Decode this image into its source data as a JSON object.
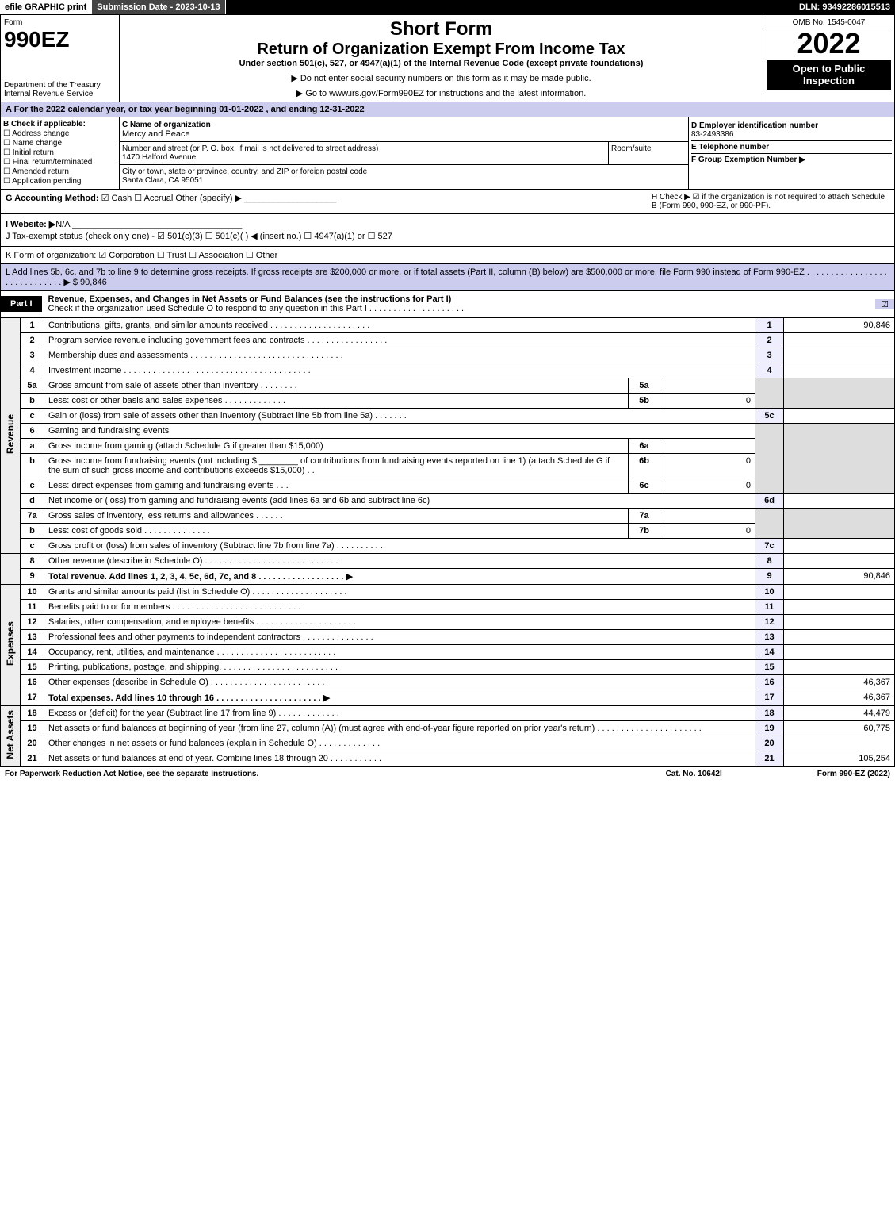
{
  "topbar": {
    "efile": "efile GRAPHIC print",
    "subdate": "Submission Date - 2023-10-13",
    "dln": "DLN: 93492286015513"
  },
  "header": {
    "form_label": "Form",
    "form_code": "990EZ",
    "dept": "Department of the Treasury\nInternal Revenue Service",
    "short_form": "Short Form",
    "title": "Return of Organization Exempt From Income Tax",
    "subtitle": "Under section 501(c), 527, or 4947(a)(1) of the Internal Revenue Code (except private foundations)",
    "note1": "▶ Do not enter social security numbers on this form as it may be made public.",
    "note2": "▶ Go to www.irs.gov/Form990EZ for instructions and the latest information.",
    "omb": "OMB No. 1545-0047",
    "year": "2022",
    "open": "Open to Public Inspection"
  },
  "sec_a": "A  For the 2022 calendar year, or tax year beginning 01-01-2022 , and ending 12-31-2022",
  "sec_b": {
    "label": "B  Check if applicable:",
    "items": [
      "Address change",
      "Name change",
      "Initial return",
      "Final return/terminated",
      "Amended return",
      "Application pending"
    ]
  },
  "sec_c": {
    "label": "C Name of organization",
    "name": "Mercy and Peace",
    "addr_label": "Number and street (or P. O. box, if mail is not delivered to street address)",
    "addr": "1470 Halford Avenue",
    "room_label": "Room/suite",
    "city_label": "City or town, state or province, country, and ZIP or foreign postal code",
    "city": "Santa Clara, CA  95051"
  },
  "sec_d": {
    "label": "D Employer identification number",
    "ein": "83-2493386",
    "e_label": "E Telephone number",
    "f_label": "F Group Exemption Number  ▶"
  },
  "sec_g": {
    "label": "G Accounting Method:",
    "cash": "Cash",
    "accrual": "Accrual",
    "other": "Other (specify) ▶"
  },
  "sec_h": "H  Check ▶ ☑ if the organization is not required to attach Schedule B (Form 990, 990-EZ, or 990-PF).",
  "sec_i": {
    "label": "I Website: ▶",
    "val": "N/A"
  },
  "sec_j": "J Tax-exempt status (check only one) - ☑ 501(c)(3) ☐ 501(c)(  ) ◀ (insert no.) ☐ 4947(a)(1) or ☐ 527",
  "sec_k": "K Form of organization:  ☑ Corporation  ☐ Trust  ☐ Association  ☐ Other",
  "sec_l": {
    "text": "L Add lines 5b, 6c, and 7b to line 9 to determine gross receipts. If gross receipts are $200,000 or more, or if total assets (Part II, column (B) below) are $500,000 or more, file Form 990 instead of Form 990-EZ . . . . . . . . . . . . . . . . . . . . . . . . . . . . . ▶ $",
    "amt": "90,846"
  },
  "part1": {
    "label": "Part I",
    "title": "Revenue, Expenses, and Changes in Net Assets or Fund Balances (see the instructions for Part I)",
    "sub": "Check if the organization used Schedule O to respond to any question in this Part I . . . . . . . . . . . . . . . . . . . .",
    "checked": "☑"
  },
  "revenue_label": "Revenue",
  "expenses_label": "Expenses",
  "netassets_label": "Net Assets",
  "lines": {
    "l1": {
      "n": "1",
      "t": "Contributions, gifts, grants, and similar amounts received . . . . . . . . . . . . . . . . . . . . .",
      "ref": "1",
      "amt": "90,846"
    },
    "l2": {
      "n": "2",
      "t": "Program service revenue including government fees and contracts . . . . . . . . . . . . . . . . .",
      "ref": "2",
      "amt": ""
    },
    "l3": {
      "n": "3",
      "t": "Membership dues and assessments . . . . . . . . . . . . . . . . . . . . . . . . . . . . . . . .",
      "ref": "3",
      "amt": ""
    },
    "l4": {
      "n": "4",
      "t": "Investment income . . . . . . . . . . . . . . . . . . . . . . . . . . . . . . . . . . . . . . .",
      "ref": "4",
      "amt": ""
    },
    "l5a": {
      "n": "5a",
      "t": "Gross amount from sale of assets other than inventory . . . . . . . .",
      "sref": "5a",
      "samt": ""
    },
    "l5b": {
      "n": "b",
      "t": "Less: cost or other basis and sales expenses . . . . . . . . . . . . .",
      "sref": "5b",
      "samt": "0"
    },
    "l5c": {
      "n": "c",
      "t": "Gain or (loss) from sale of assets other than inventory (Subtract line 5b from line 5a) . . . . . . .",
      "ref": "5c",
      "amt": ""
    },
    "l6": {
      "n": "6",
      "t": "Gaming and fundraising events"
    },
    "l6a": {
      "n": "a",
      "t": "Gross income from gaming (attach Schedule G if greater than $15,000)",
      "sref": "6a",
      "samt": ""
    },
    "l6b": {
      "n": "b",
      "t1": "Gross income from fundraising events (not including $",
      "t2": "of contributions from fundraising events reported on line 1) (attach Schedule G if the sum of such gross income and contributions exceeds $15,000)   .  .",
      "sref": "6b",
      "samt": "0"
    },
    "l6c": {
      "n": "c",
      "t": "Less: direct expenses from gaming and fundraising events  . . .",
      "sref": "6c",
      "samt": "0"
    },
    "l6d": {
      "n": "d",
      "t": "Net income or (loss) from gaming and fundraising events (add lines 6a and 6b and subtract line 6c)",
      "ref": "6d",
      "amt": ""
    },
    "l7a": {
      "n": "7a",
      "t": "Gross sales of inventory, less returns and allowances . . . . . .",
      "sref": "7a",
      "samt": ""
    },
    "l7b": {
      "n": "b",
      "t": "Less: cost of goods sold     .  .  .  .  .  .  .  .  .  .  .  .  .  .",
      "sref": "7b",
      "samt": "0"
    },
    "l7c": {
      "n": "c",
      "t": "Gross profit or (loss) from sales of inventory (Subtract line 7b from line 7a) . . . . . . . . . .",
      "ref": "7c",
      "amt": ""
    },
    "l8": {
      "n": "8",
      "t": "Other revenue (describe in Schedule O) . . . . . . . . . . . . . . . . . . . . . . . . . . . . .",
      "ref": "8",
      "amt": ""
    },
    "l9": {
      "n": "9",
      "t": "Total revenue. Add lines 1, 2, 3, 4, 5c, 6d, 7c, and 8  . . . . . . . . . . . . . . . . . .    ▶",
      "ref": "9",
      "amt": "90,846"
    },
    "l10": {
      "n": "10",
      "t": "Grants and similar amounts paid (list in Schedule O) . . . . . . . . . . . . . . . . . . . .",
      "ref": "10",
      "amt": ""
    },
    "l11": {
      "n": "11",
      "t": "Benefits paid to or for members    . . . . . . . . . . . . . . . . . . . . . . . . . . .",
      "ref": "11",
      "amt": ""
    },
    "l12": {
      "n": "12",
      "t": "Salaries, other compensation, and employee benefits . . . . . . . . . . . . . . . . . . . . .",
      "ref": "12",
      "amt": ""
    },
    "l13": {
      "n": "13",
      "t": "Professional fees and other payments to independent contractors . . . . . . . . . . . . . . .",
      "ref": "13",
      "amt": ""
    },
    "l14": {
      "n": "14",
      "t": "Occupancy, rent, utilities, and maintenance . . . . . . . . . . . . . . . . . . . . . . . . .",
      "ref": "14",
      "amt": ""
    },
    "l15": {
      "n": "15",
      "t": "Printing, publications, postage, and shipping. . . . . . . . . . . . . . . . . . . . . . . . .",
      "ref": "15",
      "amt": ""
    },
    "l16": {
      "n": "16",
      "t": "Other expenses (describe in Schedule O)    . . . . . . . . . . . . . . . . . . . . . . . .",
      "ref": "16",
      "amt": "46,367"
    },
    "l17": {
      "n": "17",
      "t": "Total expenses. Add lines 10 through 16    . . . . . . . . . . . . . . . . . . . . . .   ▶",
      "ref": "17",
      "amt": "46,367"
    },
    "l18": {
      "n": "18",
      "t": "Excess or (deficit) for the year (Subtract line 17 from line 9)     . . . . . . . . . . . . .",
      "ref": "18",
      "amt": "44,479"
    },
    "l19": {
      "n": "19",
      "t": "Net assets or fund balances at beginning of year (from line 27, column (A)) (must agree with end-of-year figure reported on prior year's return) . . . . . . . . . . . . . . . . . . . . . .",
      "ref": "19",
      "amt": "60,775"
    },
    "l20": {
      "n": "20",
      "t": "Other changes in net assets or fund balances (explain in Schedule O) . . . . . . . . . . . . .",
      "ref": "20",
      "amt": ""
    },
    "l21": {
      "n": "21",
      "t": "Net assets or fund balances at end of year. Combine lines 18 through 20 . . . . . . . . . . .",
      "ref": "21",
      "amt": "105,254"
    }
  },
  "footer": {
    "left": "For Paperwork Reduction Act Notice, see the separate instructions.",
    "mid": "Cat. No. 10642I",
    "right": "Form 990-EZ (2022)"
  },
  "colors": {
    "topbar_bg": "#000000",
    "part_lbl_bg": "#000000",
    "sec_a_bg": "#ccccee",
    "shade_bg": "#dddddd",
    "colref_bg": "#eeeeff"
  }
}
